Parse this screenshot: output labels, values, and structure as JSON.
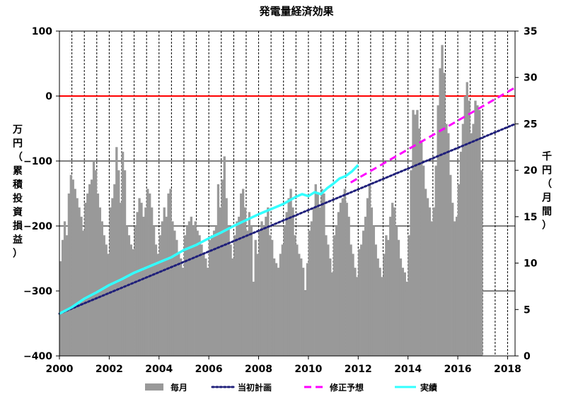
{
  "chart_data": {
    "type": "bar+line",
    "title": "発電量経済効果",
    "left_axis": {
      "label_chars": [
        "万",
        "円",
        "（",
        "累",
        "積",
        "投",
        "資",
        "損",
        "益",
        "）"
      ],
      "ylim": [
        -400,
        100
      ],
      "ticks": [
        100,
        0,
        -100,
        -200,
        -300,
        -400
      ],
      "tick_labels": [
        "100",
        "0",
        "−100",
        "−200",
        "−300",
        "−400"
      ]
    },
    "right_axis": {
      "label_chars": [
        "千",
        "円",
        "（",
        "月",
        "間",
        "）"
      ],
      "ylim": [
        0,
        35
      ],
      "ticks": [
        35,
        30,
        25,
        20,
        15,
        10,
        5,
        0
      ],
      "tick_labels": [
        "35",
        "30",
        "25",
        "20",
        "15",
        "10",
        "5",
        "0"
      ]
    },
    "x_axis": {
      "xlim": [
        2000,
        2018.3
      ],
      "ticks": [
        2000,
        2002,
        2004,
        2006,
        2008,
        2010,
        2012,
        2014,
        2016,
        2018
      ],
      "tick_labels": [
        "2000",
        "2002",
        "2004",
        "2006",
        "2008",
        "2010",
        "2012",
        "2014",
        "2016",
        "2018"
      ],
      "vertical_grid": [
        2000.5,
        2001,
        2001.5,
        2002,
        2002.5,
        2003,
        2003.5,
        2004,
        2004.5,
        2005,
        2005.5,
        2006,
        2006.5,
        2007,
        2007.5,
        2008,
        2008.5,
        2009,
        2009.5,
        2010,
        2010.5,
        2011,
        2011.5,
        2012,
        2012.5,
        2013,
        2013.5,
        2014,
        2014.5,
        2015,
        2015.5,
        2016,
        2016.5,
        2017,
        2017.5,
        2018
      ]
    },
    "zero_line": {
      "value": 0,
      "color": "#ff0000"
    },
    "monthly_bars": {
      "name": "毎月",
      "color": "#999999",
      "start": 2000,
      "step": 0.0833,
      "values": [
        10.2,
        12.5,
        14.5,
        13.0,
        17.5,
        19.5,
        19.0,
        18.0,
        17.0,
        16.0,
        15.0,
        13.5,
        16.5,
        17.5,
        18.5,
        19.0,
        21.0,
        20.0,
        17.5,
        16.0,
        14.5,
        13.0,
        12.0,
        11.0,
        16.0,
        17.0,
        18.5,
        22.5,
        20.0,
        16.5,
        22.0,
        20.0,
        14.0,
        13.0,
        12.0,
        11.5,
        14.0,
        15.5,
        17.0,
        16.5,
        15.0,
        16.0,
        18.0,
        17.5,
        16.0,
        14.0,
        12.0,
        11.0,
        13.0,
        14.5,
        16.0,
        15.0,
        17.5,
        18.0,
        14.5,
        13.5,
        12.5,
        11.0,
        10.5,
        9.5,
        13.0,
        14.0,
        14.5,
        15.0,
        14.0,
        14.5,
        13.5,
        13.0,
        12.0,
        11.0,
        10.5,
        9.5,
        12.5,
        13.0,
        13.5,
        14.0,
        18.5,
        16.0,
        19.0,
        21.5,
        17.0,
        14.0,
        12.0,
        10.5,
        13.0,
        14.5,
        15.0,
        17.5,
        18.0,
        16.0,
        13.5,
        15.5,
        14.0,
        8.0,
        12.5,
        11.0,
        13.5,
        14.5,
        14.0,
        15.0,
        16.0,
        13.0,
        12.5,
        10.5,
        10.0,
        9.5,
        11.0,
        12.0,
        14.0,
        15.5,
        17.0,
        18.0,
        16.0,
        13.0,
        12.0,
        11.0,
        10.5,
        9.5,
        7.0,
        10.0,
        13.5,
        14.5,
        16.0,
        18.5,
        17.5,
        16.0,
        18.0,
        17.5,
        13.0,
        12.0,
        10.5,
        9.0,
        13.0,
        14.0,
        15.5,
        16.5,
        17.0,
        18.0,
        16.5,
        15.0,
        12.0,
        11.0,
        9.5,
        8.5,
        11.5,
        12.0,
        13.5,
        15.0,
        17.0,
        18.5,
        16.0,
        14.0,
        12.0,
        10.5,
        9.5,
        8.5,
        11.0,
        13.0,
        12.5,
        15.0,
        16.5,
        16.0,
        14.0,
        12.5,
        10.5,
        9.5,
        9.0,
        8.0,
        13.0,
        20.0,
        26.5,
        26.0,
        26.5,
        24.5,
        23.0,
        20.5,
        18.0,
        17.0,
        16.0,
        14.5,
        16.0,
        20.5,
        27.0,
        31.0,
        33.5,
        30.5,
        25.0,
        24.0,
        19.5,
        16.5,
        14.5,
        15.0,
        18.5,
        22.0,
        25.0,
        28.0,
        29.5,
        27.5,
        24.0,
        25.0,
        27.5,
        27.0,
        26.5,
        20.0
      ]
    },
    "series": [
      {
        "name": "当初計画",
        "style": "dotted",
        "color": "#1f1f7a",
        "x": [
          2000,
          2018.3
        ],
        "y": [
          -335,
          -43
        ]
      },
      {
        "name": "修正予想",
        "style": "dashed",
        "color": "#ff00ff",
        "x": [
          2011.7,
          2018.3
        ],
        "y": [
          -133,
          13
        ]
      },
      {
        "name": "実績",
        "style": "solid",
        "color": "#33ffff",
        "x": [
          2000,
          2000.5,
          2001,
          2001.5,
          2002,
          2002.5,
          2003,
          2003.5,
          2004,
          2004.5,
          2005,
          2005.5,
          2006,
          2006.5,
          2007,
          2007.5,
          2008,
          2008.5,
          2009,
          2009.5,
          2009.75,
          2010,
          2010.25,
          2010.5,
          2010.75,
          2011,
          2011.25,
          2011.5,
          2011.75,
          2012
        ],
        "y": [
          -335,
          -325,
          -312,
          -302,
          -291,
          -282,
          -272,
          -264,
          -256,
          -248,
          -237,
          -229,
          -219,
          -210,
          -200,
          -191,
          -182,
          -174,
          -166,
          -155,
          -151,
          -154,
          -148,
          -151,
          -142,
          -135,
          -127,
          -123,
          -116,
          -106
        ]
      }
    ],
    "legend": {
      "placement": "bottom",
      "items": [
        {
          "label": "毎月",
          "kind": "bar",
          "color": "#999999"
        },
        {
          "label": "当初計画",
          "kind": "dotted",
          "color": "#1f1f7a"
        },
        {
          "label": "修正予想",
          "kind": "dashed",
          "color": "#ff00ff"
        },
        {
          "label": "実績",
          "kind": "solid",
          "color": "#33ffff"
        }
      ]
    }
  }
}
